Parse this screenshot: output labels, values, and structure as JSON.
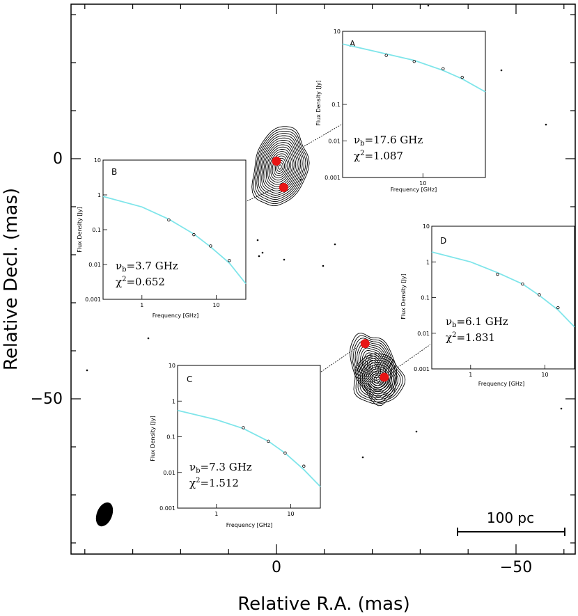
{
  "colors": {
    "fit_line": "#7fe5ea",
    "component": "#e81414",
    "beam": "#2e4a4a",
    "contour": "#000000"
  },
  "chart_data": [
    {
      "type": "contour_map",
      "xlabel": "Relative R.A. (mas)",
      "ylabel": "Relative Decl. (mas)",
      "x_ticks": [
        "0",
        "−50"
      ],
      "y_ticks": [
        "0",
        "−50"
      ],
      "xlim": [
        43,
        -61
      ],
      "ylim": [
        -83,
        33
      ],
      "scale_bar": {
        "label": "100 pc"
      },
      "components": [
        {
          "id": "A",
          "ra": 0,
          "dec": -0.5
        },
        {
          "id": "B",
          "ra": -1.5,
          "dec": -6
        },
        {
          "id": "C",
          "ra": -18.5,
          "dec": -38.5
        },
        {
          "id": "D",
          "ra": -22.5,
          "dec": -45.5
        }
      ]
    },
    {
      "type": "line",
      "panel": "A",
      "xlabel": "Frequency [GHz]",
      "ylabel": "Flux Density [Jy]",
      "xticks": [
        "10"
      ],
      "yticks": [
        "10",
        "0.1",
        "0.01",
        "0.001"
      ],
      "points": [
        [
          4.8,
          2.2
        ],
        [
          8.4,
          1.5
        ],
        [
          15,
          0.95
        ],
        [
          22,
          0.55
        ]
      ],
      "fit": [
        [
          2,
          4.5
        ],
        [
          4.8,
          2.4
        ],
        [
          8.4,
          1.6
        ],
        [
          15,
          0.85
        ],
        [
          22,
          0.5
        ],
        [
          35,
          0.22
        ]
      ],
      "nu_label": "ν",
      "nu_sub": "b",
      "nu_value": "=17.6 GHz",
      "chi_label": "χ",
      "chi_value": "=1.087"
    },
    {
      "type": "line",
      "panel": "B",
      "xlabel": "Frequency [GHz]",
      "ylabel": "Flux Density [Jy]",
      "xticks": [
        "1",
        "10"
      ],
      "yticks": [
        "10",
        "1",
        "0.1",
        "0.01",
        "0.001"
      ],
      "points": [
        [
          2.3,
          0.19
        ],
        [
          5,
          0.072
        ],
        [
          8.4,
          0.034
        ],
        [
          15,
          0.013
        ]
      ],
      "fit": [
        [
          0.3,
          0.9
        ],
        [
          1,
          0.45
        ],
        [
          2.3,
          0.2
        ],
        [
          5,
          0.075
        ],
        [
          8.4,
          0.032
        ],
        [
          15,
          0.011
        ],
        [
          25,
          0.0028
        ]
      ],
      "nu_label": "ν",
      "nu_sub": "b",
      "nu_value": "=3.7 GHz",
      "chi_label": "χ",
      "chi_value": "=0.652"
    },
    {
      "type": "line",
      "panel": "C",
      "xlabel": "Frequency [GHz]",
      "ylabel": "Flux Density [Jy]",
      "xticks": [
        "1",
        "10"
      ],
      "yticks": [
        "10",
        "1",
        "0.1",
        "0.01",
        "0.001"
      ],
      "points": [
        [
          2.3,
          0.18
        ],
        [
          5,
          0.075
        ],
        [
          8.4,
          0.035
        ],
        [
          15,
          0.015
        ]
      ],
      "fit": [
        [
          0.3,
          0.55
        ],
        [
          1,
          0.3
        ],
        [
          2.3,
          0.17
        ],
        [
          5,
          0.075
        ],
        [
          8.4,
          0.035
        ],
        [
          15,
          0.012
        ],
        [
          25,
          0.004
        ]
      ],
      "nu_label": "ν",
      "nu_sub": "b",
      "nu_value": "=7.3 GHz",
      "chi_label": "χ",
      "chi_value": "=1.512"
    },
    {
      "type": "line",
      "panel": "D",
      "xlabel": "Frequency [GHz]",
      "ylabel": "Flux Density [Jy]",
      "xticks": [
        "1",
        "10"
      ],
      "yticks": [
        "10",
        "1",
        "0.1",
        "0.01",
        "0.001"
      ],
      "points": [
        [
          2.3,
          0.45
        ],
        [
          5,
          0.24
        ],
        [
          8.4,
          0.12
        ],
        [
          15,
          0.052
        ]
      ],
      "fit": [
        [
          0.3,
          1.9
        ],
        [
          1,
          1.0
        ],
        [
          2.3,
          0.5
        ],
        [
          5,
          0.24
        ],
        [
          8.4,
          0.115
        ],
        [
          15,
          0.045
        ],
        [
          25,
          0.015
        ]
      ],
      "nu_label": "ν",
      "nu_sub": "b",
      "nu_value": "=6.1 GHz",
      "chi_label": "χ",
      "chi_value": "=1.831"
    }
  ]
}
